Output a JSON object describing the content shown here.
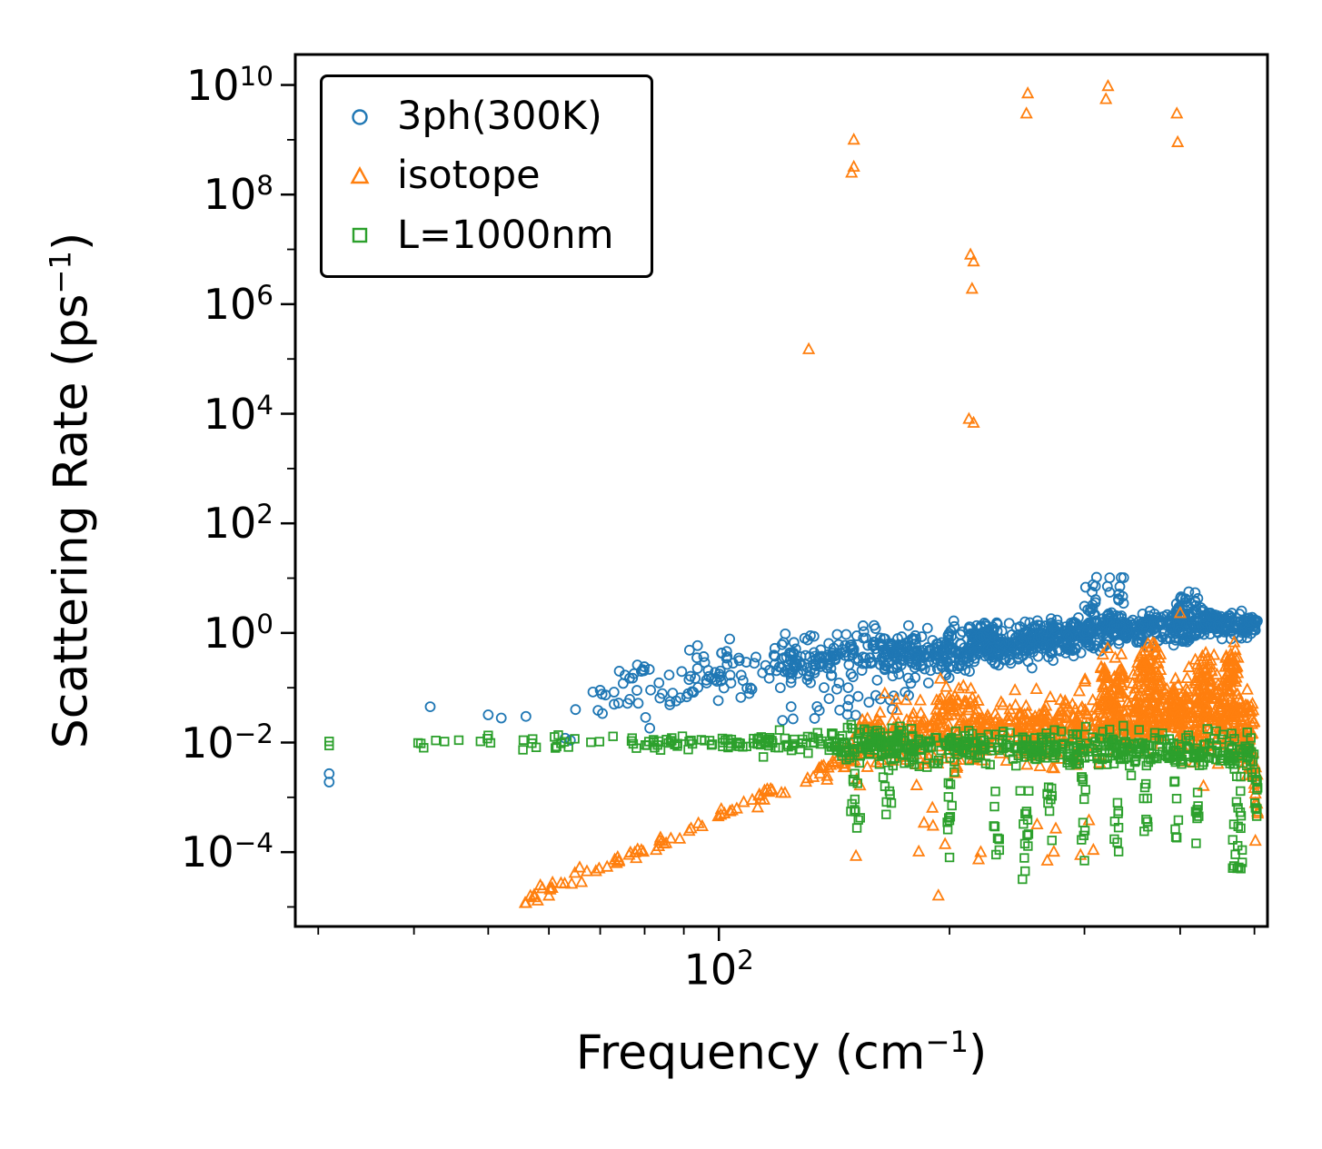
{
  "figure": {
    "background": "#ffffff",
    "frame_color": "#000000"
  },
  "chart_data": {
    "type": "scatter",
    "title": "",
    "xlabel": {
      "pre": "Frequency (cm",
      "sup": "−1",
      "post": ")"
    },
    "ylabel": {
      "pre": "Scattering Rate (ps",
      "sup": "−1",
      "post": ")"
    },
    "x_scale": "log",
    "y_scale": "log",
    "xlim": [
      28,
      520
    ],
    "ylim": [
      4.4e-06,
      36000000000.0
    ],
    "grid": false,
    "legend_position": "upper left",
    "x_ticks": [
      {
        "value": 100,
        "exp": "2"
      }
    ],
    "x_minor_ticks": [
      30,
      40,
      50,
      60,
      70,
      80,
      90,
      200,
      300,
      400,
      500
    ],
    "y_ticks": [
      {
        "value": 10000000000.0,
        "exp": "10"
      },
      {
        "value": 100000000.0,
        "exp": "8"
      },
      {
        "value": 1000000.0,
        "exp": "6"
      },
      {
        "value": 10000.0,
        "exp": "4"
      },
      {
        "value": 100.0,
        "exp": "2"
      },
      {
        "value": 1,
        "exp": "0"
      },
      {
        "value": 0.01,
        "exp": "−2"
      },
      {
        "value": 0.0001,
        "exp": "−4"
      }
    ],
    "y_minor_ticks": [
      1000000000.0,
      10000000.0,
      100000.0,
      1000.0,
      10,
      0.1,
      0.001,
      1e-05
    ],
    "series": [
      {
        "name": "3ph(300K)",
        "marker": "circle",
        "color": "#1f77b4",
        "points": [
          [
            31,
            0.0027
          ],
          [
            31,
            0.0019
          ],
          [
            42,
            0.045
          ],
          [
            50,
            0.032
          ],
          [
            52,
            0.028
          ],
          [
            56,
            0.03
          ],
          [
            63,
            0.012
          ],
          [
            64,
            0.011
          ],
          [
            65,
            0.04
          ],
          [
            70,
            0.09
          ],
          [
            73,
            0.05
          ],
          [
            75,
            0.12
          ]
        ],
        "clusters": [
          {
            "x0": 68,
            "x1": 90,
            "n": 35,
            "seed": 11,
            "lc0": -1.15,
            "lc1": -0.85,
            "ls": 0.3
          },
          {
            "x0": 90,
            "x1": 120,
            "n": 60,
            "seed": 12,
            "lc0": -0.8,
            "lc1": -0.55,
            "ls": 0.28
          },
          {
            "x0": 120,
            "x1": 160,
            "n": 130,
            "seed": 13,
            "lc0": -0.52,
            "lc1": -0.45,
            "ls": 0.24
          },
          {
            "x0": 120,
            "x1": 200,
            "n": 25,
            "seed": 14,
            "lc0": -1.35,
            "lc1": -1.1,
            "ls": 0.25
          },
          {
            "x0": 160,
            "x1": 210,
            "n": 190,
            "seed": 15,
            "lc0": -0.42,
            "lc1": -0.35,
            "ls": 0.2
          },
          {
            "x0": 210,
            "x1": 260,
            "n": 180,
            "seed": 16,
            "lc0": -0.3,
            "lc1": -0.18,
            "ls": 0.17
          },
          {
            "x0": 212,
            "x1": 232,
            "n": 50,
            "seed": 17,
            "lc0": -0.05,
            "lc1": 0.08,
            "ls": 0.12
          },
          {
            "x0": 260,
            "x1": 310,
            "n": 150,
            "seed": 18,
            "lc0": -0.15,
            "lc1": 0.0,
            "ls": 0.18
          },
          {
            "x0": 300,
            "x1": 340,
            "n": 40,
            "seed": 19,
            "lc0": 0.25,
            "lc1": 0.85,
            "ls": 0.3
          },
          {
            "x0": 310,
            "x1": 370,
            "n": 130,
            "seed": 20,
            "lc0": 0.0,
            "lc1": 0.12,
            "ls": 0.14
          },
          {
            "x0": 370,
            "x1": 430,
            "n": 110,
            "seed": 21,
            "lc0": 0.08,
            "lc1": 0.22,
            "ls": 0.18
          },
          {
            "x0": 395,
            "x1": 425,
            "n": 30,
            "seed": 22,
            "lc0": 0.45,
            "lc1": 0.55,
            "ls": 0.25
          },
          {
            "x0": 430,
            "x1": 505,
            "n": 140,
            "seed": 23,
            "lc0": 0.22,
            "lc1": 0.1,
            "ls": 0.1
          }
        ]
      },
      {
        "name": "isotope",
        "marker": "triangle",
        "color": "#ff7f0e",
        "points": [
          [
            58,
            1.3e-05
          ],
          [
            60,
            1.6e-05
          ],
          [
            131,
            150000.0
          ],
          [
            150,
            1000000000.0
          ],
          [
            150,
            320000000.0
          ],
          [
            149,
            250000000.0
          ],
          [
            213,
            8000000.0
          ],
          [
            215,
            6000000.0
          ],
          [
            214,
            1900000.0
          ],
          [
            212,
            8000.0
          ],
          [
            215,
            6800.0
          ],
          [
            253,
            7000000000.0
          ],
          [
            252,
            3000000000.0
          ],
          [
            322,
            9500000000.0
          ],
          [
            320,
            5500000000.0
          ],
          [
            396,
            3000000000.0
          ],
          [
            397,
            900000000.0
          ],
          [
            400,
            2.3
          ]
        ],
        "clusters": [
          {
            "x0": 55,
            "x1": 135,
            "n": 70,
            "seed": 31,
            "lc0": -4.9,
            "lc1": -2.55,
            "ls": 0.07
          },
          {
            "x0": 135,
            "x1": 152,
            "n": 30,
            "seed": 32,
            "lc0": -2.5,
            "lc1": -2.15,
            "ls": 0.12
          },
          {
            "x0": 150,
            "x1": 250,
            "n": 260,
            "seed": 33,
            "lc0": -1.95,
            "lc1": -1.8,
            "ls": 0.28
          },
          {
            "x0": 192,
            "x1": 215,
            "n": 40,
            "seed": 34,
            "lc0": -1.35,
            "lc1": -1.3,
            "ls": 0.22
          },
          {
            "x0": 250,
            "x1": 335,
            "n": 220,
            "seed": 35,
            "lc0": -1.8,
            "lc1": -1.6,
            "ls": 0.28
          },
          {
            "x0": 315,
            "x1": 338,
            "n": 50,
            "seed": 36,
            "lc0": -0.95,
            "lc1": -0.8,
            "ls": 0.25
          },
          {
            "x0": 335,
            "x1": 395,
            "n": 170,
            "seed": 37,
            "lc0": -1.6,
            "lc1": -1.45,
            "ls": 0.3
          },
          {
            "x0": 352,
            "x1": 378,
            "n": 55,
            "seed": 38,
            "lc0": -0.75,
            "lc1": -0.7,
            "ls": 0.25
          },
          {
            "x0": 395,
            "x1": 445,
            "n": 120,
            "seed": 39,
            "lc0": -1.55,
            "lc1": -1.45,
            "ls": 0.33
          },
          {
            "x0": 418,
            "x1": 440,
            "n": 40,
            "seed": 40,
            "lc0": -0.85,
            "lc1": -0.8,
            "ls": 0.25
          },
          {
            "x0": 445,
            "x1": 500,
            "n": 140,
            "seed": 41,
            "lc0": -1.45,
            "lc1": -1.8,
            "ls": 0.33
          },
          {
            "x0": 458,
            "x1": 476,
            "n": 40,
            "seed": 42,
            "lc0": -0.75,
            "lc1": -0.7,
            "ls": 0.22
          },
          {
            "x0": 488,
            "x1": 505,
            "n": 25,
            "seed": 43,
            "lc0": -2.1,
            "lc1": -3.1,
            "ls": 0.25
          },
          {
            "x0": 150,
            "x1": 310,
            "n": 16,
            "seed": 44,
            "lc0": -3.85,
            "lc1": -3.7,
            "ls": 0.3
          }
        ]
      },
      {
        "name": "L=1000nm",
        "marker": "square",
        "color": "#2ca02c",
        "points": [
          [
            31,
            0.0105
          ],
          [
            31,
            0.0088
          ],
          [
            50,
            0.0135
          ],
          [
            249,
            3.2e-05
          ],
          [
            251,
            4.5e-05
          ],
          [
            480,
            5e-05
          ],
          [
            482,
            6.5e-05
          ],
          [
            200,
            8e-05
          ],
          [
            300,
            7e-05
          ],
          [
            230,
            9e-05
          ]
        ],
        "clusters": [
          {
            "x0": 40,
            "x1": 46,
            "n": 6,
            "seed": 51,
            "lc0": -2.0,
            "lc1": -2.0,
            "ls": 0.05
          },
          {
            "x0": 48,
            "x1": 60,
            "n": 8,
            "seed": 52,
            "lc0": -2.0,
            "lc1": -2.0,
            "ls": 0.07
          },
          {
            "x0": 60,
            "x1": 78,
            "n": 14,
            "seed": 53,
            "lc0": -2.0,
            "lc1": -2.0,
            "ls": 0.06
          },
          {
            "x0": 78,
            "x1": 100,
            "n": 30,
            "seed": 54,
            "lc0": -2.0,
            "lc1": -2.0,
            "ls": 0.07
          },
          {
            "x0": 100,
            "x1": 140,
            "n": 60,
            "seed": 55,
            "lc0": -2.0,
            "lc1": -2.02,
            "ls": 0.09
          },
          {
            "x0": 140,
            "x1": 500,
            "n": 520,
            "seed": 56,
            "lc0": -2.02,
            "lc1": -2.2,
            "ls": 0.16
          },
          {
            "x0": 148,
            "x1": 153,
            "n": 12,
            "seed": 57,
            "ly0": -2.5,
            "ly1": -3.7
          },
          {
            "x0": 163,
            "x1": 168,
            "n": 8,
            "seed": 58,
            "ly0": -2.5,
            "ly1": -3.4
          },
          {
            "x0": 198,
            "x1": 203,
            "n": 10,
            "seed": 59,
            "ly0": -2.5,
            "ly1": -4.0
          },
          {
            "x0": 228,
            "x1": 233,
            "n": 8,
            "seed": 60,
            "ly0": -2.6,
            "ly1": -4.1
          },
          {
            "x0": 247,
            "x1": 254,
            "n": 12,
            "seed": 61,
            "ly0": -2.5,
            "ly1": -4.4
          },
          {
            "x0": 268,
            "x1": 273,
            "n": 8,
            "seed": 62,
            "ly0": -2.6,
            "ly1": -3.8
          },
          {
            "x0": 297,
            "x1": 303,
            "n": 10,
            "seed": 63,
            "ly0": -2.6,
            "ly1": -3.9
          },
          {
            "x0": 328,
            "x1": 333,
            "n": 8,
            "seed": 64,
            "ly0": -2.7,
            "ly1": -4.0
          },
          {
            "x0": 358,
            "x1": 363,
            "n": 8,
            "seed": 65,
            "ly0": -2.6,
            "ly1": -3.7
          },
          {
            "x0": 393,
            "x1": 398,
            "n": 8,
            "seed": 66,
            "ly0": -2.7,
            "ly1": -3.9
          },
          {
            "x0": 418,
            "x1": 423,
            "n": 8,
            "seed": 67,
            "ly0": -2.7,
            "ly1": -4.2
          },
          {
            "x0": 468,
            "x1": 484,
            "n": 18,
            "seed": 68,
            "ly0": -2.6,
            "ly1": -4.3
          },
          {
            "x0": 495,
            "x1": 505,
            "n": 12,
            "seed": 69,
            "ly0": -2.35,
            "ly1": -3.4
          }
        ]
      }
    ]
  }
}
